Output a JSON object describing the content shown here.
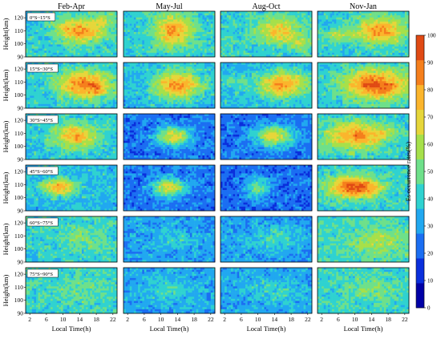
{
  "chart_data": {
    "type": "heatmap",
    "columns": [
      "Feb-Apr",
      "May-Jul",
      "Aug-Oct",
      "Nov-Jan"
    ],
    "rows": [
      "0°S~15°S",
      "15°S~30°S",
      "30°S~45°S",
      "45°S~60°S",
      "60°S~75°S",
      "75°S~90°S"
    ],
    "ylabel": "Height(km)",
    "xlabel": "Local Time(h)",
    "x_ticks": [
      2,
      6,
      10,
      14,
      18,
      22
    ],
    "y_ticks": [
      90,
      100,
      110,
      120
    ],
    "xlim": [
      1,
      23
    ],
    "ylim": [
      90,
      125
    ],
    "colorbar": {
      "label": "Es occurrence rates(%)",
      "ticks": [
        0,
        10,
        20,
        30,
        40,
        50,
        60,
        70,
        80,
        90,
        100
      ],
      "range": [
        0,
        100
      ],
      "colors": [
        "#0000a6",
        "#0a2fdc",
        "#1b6ef2",
        "#21a8f0",
        "#2fd2d0",
        "#6ee08a",
        "#a6e04a",
        "#e6d63a",
        "#fbb52c",
        "#f57f1c",
        "#e04a14"
      ]
    },
    "panels": [
      {
        "row": 0,
        "col": 0,
        "blobs": [
          {
            "x": 14,
            "y": 110,
            "sx": 5.5,
            "sy": 9,
            "a": 42
          },
          {
            "x": 20,
            "y": 118,
            "sx": 3,
            "sy": 6,
            "a": 15
          }
        ],
        "base": 40
      },
      {
        "row": 0,
        "col": 1,
        "blobs": [
          {
            "x": 13,
            "y": 110,
            "sx": 4.5,
            "sy": 12,
            "a": 40
          }
        ],
        "base": 40
      },
      {
        "row": 0,
        "col": 2,
        "blobs": [
          {
            "x": 15,
            "y": 110,
            "sx": 5,
            "sy": 9,
            "a": 30
          },
          {
            "x": 20,
            "y": 100,
            "sx": 3,
            "sy": 5,
            "a": 15
          }
        ],
        "base": 42
      },
      {
        "row": 0,
        "col": 3,
        "blobs": [
          {
            "x": 16,
            "y": 110,
            "sx": 6,
            "sy": 10,
            "a": 42
          },
          {
            "x": 6,
            "y": 106,
            "sx": 3,
            "sy": 5,
            "a": 18
          }
        ],
        "base": 40
      },
      {
        "row": 1,
        "col": 0,
        "blobs": [
          {
            "x": 15,
            "y": 108,
            "sx": 6.5,
            "sy": 10,
            "a": 50
          },
          {
            "x": 18,
            "y": 104,
            "sx": 2.5,
            "sy": 4,
            "a": 12
          }
        ],
        "base": 38
      },
      {
        "row": 1,
        "col": 1,
        "blobs": [
          {
            "x": 14,
            "y": 108,
            "sx": 5.5,
            "sy": 10,
            "a": 48
          }
        ],
        "base": 36
      },
      {
        "row": 1,
        "col": 2,
        "blobs": [
          {
            "x": 16,
            "y": 108,
            "sx": 6,
            "sy": 10,
            "a": 44
          },
          {
            "x": 4,
            "y": 112,
            "sx": 2.5,
            "sy": 5,
            "a": 14
          }
        ],
        "base": 36
      },
      {
        "row": 1,
        "col": 3,
        "blobs": [
          {
            "x": 15,
            "y": 108,
            "sx": 7.5,
            "sy": 11,
            "a": 52
          },
          {
            "x": 18,
            "y": 104,
            "sx": 2.5,
            "sy": 4,
            "a": 10
          }
        ],
        "base": 40
      },
      {
        "row": 2,
        "col": 0,
        "blobs": [
          {
            "x": 13,
            "y": 108,
            "sx": 5.5,
            "sy": 9,
            "a": 40
          }
        ],
        "base": 38
      },
      {
        "row": 2,
        "col": 1,
        "blobs": [
          {
            "x": 13,
            "y": 108,
            "sx": 4,
            "sy": 7,
            "a": 45
          }
        ],
        "base": 24
      },
      {
        "row": 2,
        "col": 2,
        "blobs": [
          {
            "x": 14,
            "y": 108,
            "sx": 4.5,
            "sy": 8,
            "a": 44
          }
        ],
        "base": 24
      },
      {
        "row": 2,
        "col": 3,
        "blobs": [
          {
            "x": 10,
            "y": 108,
            "sx": 7,
            "sy": 10,
            "a": 42
          },
          {
            "x": 17,
            "y": 110,
            "sx": 3,
            "sy": 5,
            "a": 12
          }
        ],
        "base": 40
      },
      {
        "row": 3,
        "col": 0,
        "blobs": [
          {
            "x": 9,
            "y": 108,
            "sx": 4,
            "sy": 6,
            "a": 44
          }
        ],
        "base": 36
      },
      {
        "row": 3,
        "col": 1,
        "blobs": [
          {
            "x": 12,
            "y": 108,
            "sx": 4,
            "sy": 7,
            "a": 42
          }
        ],
        "base": 24
      },
      {
        "row": 3,
        "col": 2,
        "blobs": [
          {
            "x": 10,
            "y": 108,
            "sx": 3,
            "sy": 8,
            "a": 28
          }
        ],
        "base": 22
      },
      {
        "row": 3,
        "col": 3,
        "blobs": [
          {
            "x": 10,
            "y": 108,
            "sx": 6,
            "sy": 8,
            "a": 56
          }
        ],
        "base": 40
      },
      {
        "row": 4,
        "col": 0,
        "blobs": [
          {
            "x": 15,
            "y": 108,
            "sx": 6,
            "sy": 10,
            "a": 12
          }
        ],
        "base": 40
      },
      {
        "row": 4,
        "col": 1,
        "blobs": [
          {
            "x": 13,
            "y": 108,
            "sx": 5,
            "sy": 8,
            "a": 10
          }
        ],
        "base": 30
      },
      {
        "row": 4,
        "col": 2,
        "blobs": [
          {
            "x": 14,
            "y": 108,
            "sx": 6,
            "sy": 9,
            "a": 14
          }
        ],
        "base": 30
      },
      {
        "row": 4,
        "col": 3,
        "blobs": [
          {
            "x": 16,
            "y": 105,
            "sx": 6,
            "sy": 9,
            "a": 16
          }
        ],
        "base": 44
      },
      {
        "row": 5,
        "col": 0,
        "blobs": [
          {
            "x": 15,
            "y": 108,
            "sx": 6,
            "sy": 9,
            "a": 8
          }
        ],
        "base": 42
      },
      {
        "row": 5,
        "col": 1,
        "blobs": [
          {
            "x": 12,
            "y": 108,
            "sx": 6,
            "sy": 9,
            "a": 10
          }
        ],
        "base": 32
      },
      {
        "row": 5,
        "col": 2,
        "blobs": [
          {
            "x": 14,
            "y": 108,
            "sx": 6,
            "sy": 9,
            "a": 10
          }
        ],
        "base": 32
      },
      {
        "row": 5,
        "col": 3,
        "blobs": [
          {
            "x": 14,
            "y": 108,
            "sx": 6,
            "sy": 9,
            "a": 10
          }
        ],
        "base": 42
      }
    ]
  }
}
